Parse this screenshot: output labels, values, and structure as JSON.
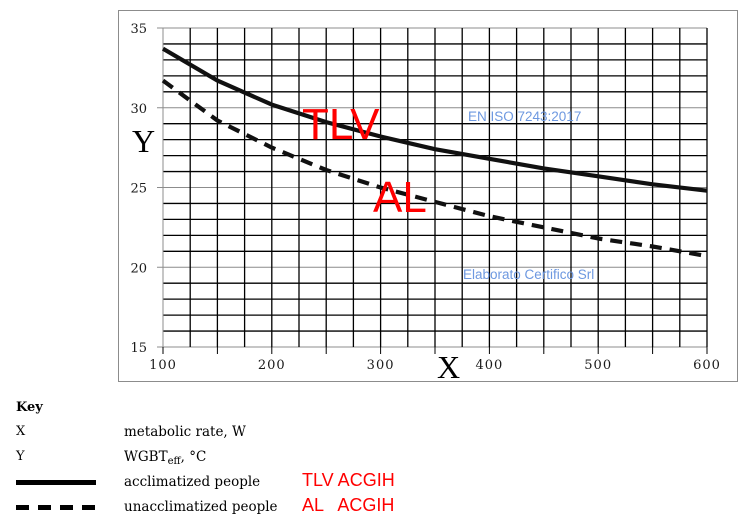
{
  "chart_data": {
    "type": "line",
    "title": "",
    "xlabel": "X",
    "ylabel": "Y",
    "xlim": [
      100,
      600
    ],
    "ylim": [
      15,
      35
    ],
    "x_ticks": [
      100,
      200,
      300,
      400,
      500,
      600
    ],
    "y_ticks": [
      15,
      20,
      25,
      30,
      35
    ],
    "x_minor_step": 25,
    "y_minor_step": 1,
    "grid": true,
    "legend_position": "below (Key)",
    "x": [
      100,
      150,
      200,
      250,
      300,
      350,
      400,
      450,
      500,
      550,
      600
    ],
    "series": [
      {
        "name": "acclimatized people (TLV ACGIH)",
        "style": "solid",
        "values": [
          33.7,
          31.7,
          30.2,
          29.1,
          28.2,
          27.4,
          26.8,
          26.2,
          25.7,
          25.2,
          24.8
        ]
      },
      {
        "name": "unacclimatized people (AL ACGIH)",
        "style": "dashed",
        "values": [
          31.7,
          29.2,
          27.5,
          26.1,
          25.0,
          24.1,
          23.2,
          22.5,
          21.8,
          21.3,
          20.7
        ]
      }
    ],
    "annotations": [
      {
        "text": "TLV",
        "color": "#ff0000",
        "near": "solid curve at x≈300"
      },
      {
        "text": "AL",
        "color": "#ff0000",
        "near": "dashed curve at x≈330"
      },
      {
        "text": "EN ISO 7243:2017",
        "color": "#6d98e0"
      },
      {
        "text": "Elaborato Certifico Srl",
        "color": "#6d98e0"
      }
    ]
  },
  "axes": {
    "x_letter": "X",
    "y_letter": "Y",
    "x_tick_labels": [
      "100",
      "200",
      "300",
      "400",
      "500",
      "600"
    ],
    "y_tick_labels": [
      "35",
      "30",
      "25",
      "20",
      "15"
    ]
  },
  "annotations": {
    "tlv": "TLV",
    "al": "AL",
    "standard": "EN ISO 7243:2017",
    "credit": "Elaborato Certifico Srl"
  },
  "colors": {
    "annotation_red": "#ff0000",
    "annotation_blue": "#6d98e0",
    "grid_major": "#8c8c8c",
    "grid_minor": "#000000"
  },
  "key": {
    "title": "Key",
    "rows": [
      {
        "symbol": "X",
        "description": "metabolic rate, W",
        "tag": ""
      },
      {
        "symbol": "Y",
        "description_main": "WGBT",
        "description_sub": "eff",
        "description_tail": ", °C",
        "tag": ""
      },
      {
        "symbol": "solid-line",
        "description": "acclimatized people",
        "tag": "TLV ACGIH"
      },
      {
        "symbol": "dashed-line",
        "description": "unacclimatized people",
        "tag": "AL   ACGIH"
      }
    ]
  }
}
